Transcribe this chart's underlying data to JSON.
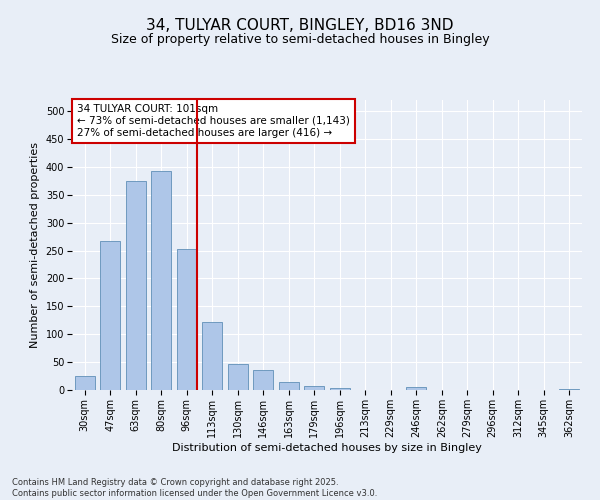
{
  "title_line1": "34, TULYAR COURT, BINGLEY, BD16 3ND",
  "title_line2": "Size of property relative to semi-detached houses in Bingley",
  "xlabel": "Distribution of semi-detached houses by size in Bingley",
  "ylabel": "Number of semi-detached properties",
  "categories": [
    "30sqm",
    "47sqm",
    "63sqm",
    "80sqm",
    "96sqm",
    "113sqm",
    "130sqm",
    "146sqm",
    "163sqm",
    "179sqm",
    "196sqm",
    "213sqm",
    "229sqm",
    "246sqm",
    "262sqm",
    "279sqm",
    "296sqm",
    "312sqm",
    "345sqm",
    "362sqm"
  ],
  "values": [
    25,
    268,
    375,
    392,
    252,
    122,
    47,
    35,
    14,
    8,
    3,
    0,
    0,
    5,
    0,
    0,
    0,
    0,
    0,
    2
  ],
  "bar_color": "#aec6e8",
  "bar_edge_color": "#6090b8",
  "vline_color": "#cc0000",
  "annotation_text": "34 TULYAR COURT: 101sqm\n← 73% of semi-detached houses are smaller (1,143)\n27% of semi-detached houses are larger (416) →",
  "annotation_box_color": "#ffffff",
  "annotation_box_edge_color": "#cc0000",
  "ylim": [
    0,
    520
  ],
  "yticks": [
    0,
    50,
    100,
    150,
    200,
    250,
    300,
    350,
    400,
    450,
    500
  ],
  "background_color": "#e8eef7",
  "footer_text": "Contains HM Land Registry data © Crown copyright and database right 2025.\nContains public sector information licensed under the Open Government Licence v3.0.",
  "title_fontsize": 11,
  "subtitle_fontsize": 9,
  "axis_label_fontsize": 8,
  "tick_label_fontsize": 7,
  "annotation_fontsize": 7.5
}
